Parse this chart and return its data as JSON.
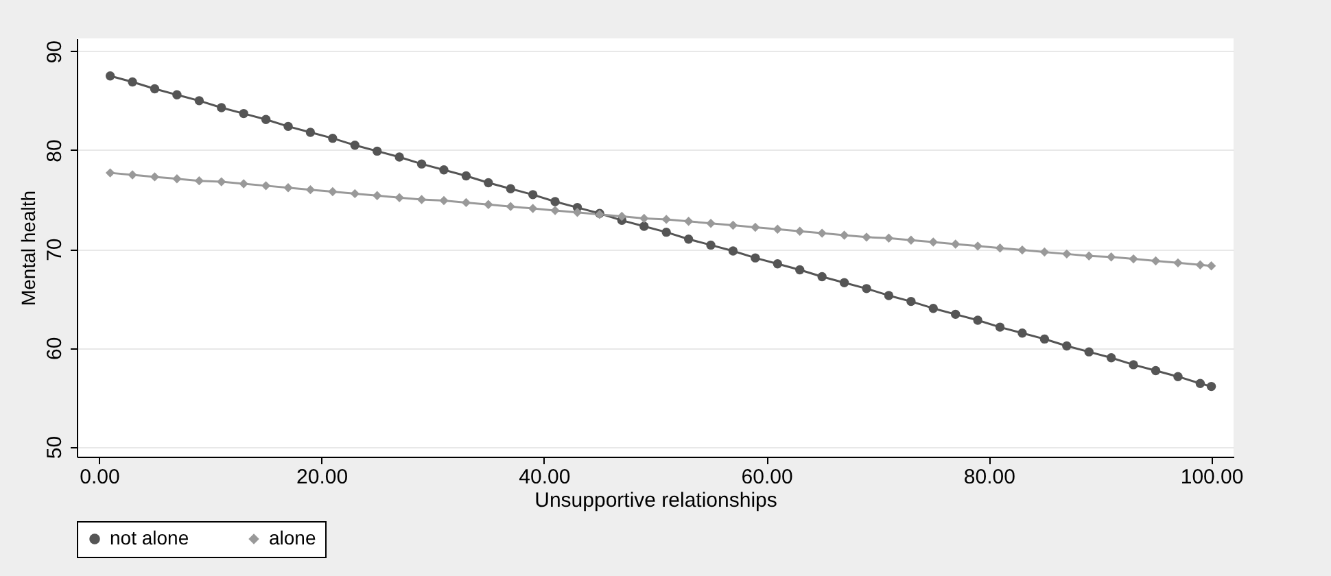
{
  "chart_data": {
    "type": "line",
    "xlabel": "Unsupportive relationships",
    "ylabel": "Mental health",
    "x": [
      1,
      3,
      5,
      7,
      9,
      11,
      13,
      15,
      17,
      19,
      21,
      23,
      25,
      27,
      29,
      31,
      33,
      35,
      37,
      39,
      41,
      43,
      45,
      47,
      49,
      51,
      53,
      55,
      57,
      59,
      61,
      63,
      65,
      67,
      69,
      71,
      73,
      75,
      77,
      79,
      81,
      83,
      85,
      87,
      89,
      91,
      93,
      95,
      97,
      99,
      100
    ],
    "series": [
      {
        "name": "not alone",
        "color": "#555555",
        "marker": "circle",
        "values": [
          87.5,
          86.9,
          86.2,
          85.6,
          85.0,
          84.3,
          83.7,
          83.1,
          82.4,
          81.8,
          81.2,
          80.5,
          79.9,
          79.3,
          78.6,
          78.0,
          77.4,
          76.7,
          76.1,
          75.5,
          74.8,
          74.2,
          73.6,
          72.9,
          72.3,
          71.7,
          71.0,
          70.4,
          69.8,
          69.1,
          68.5,
          67.9,
          67.2,
          66.6,
          66.0,
          65.3,
          64.7,
          64.0,
          63.4,
          62.8,
          62.1,
          61.5,
          60.9,
          60.2,
          59.6,
          59.0,
          58.3,
          57.7,
          57.1,
          56.4,
          56.1
        ]
      },
      {
        "name": "alone",
        "color": "#999999",
        "marker": "diamond",
        "values": [
          77.7,
          77.5,
          77.3,
          77.1,
          76.9,
          76.8,
          76.6,
          76.4,
          76.2,
          76.0,
          75.8,
          75.6,
          75.4,
          75.2,
          75.0,
          74.9,
          74.7,
          74.5,
          74.3,
          74.1,
          73.9,
          73.7,
          73.5,
          73.3,
          73.1,
          73.0,
          72.8,
          72.6,
          72.4,
          72.2,
          72.0,
          71.8,
          71.6,
          71.4,
          71.2,
          71.1,
          70.9,
          70.7,
          70.5,
          70.3,
          70.1,
          69.9,
          69.7,
          69.5,
          69.3,
          69.2,
          69.0,
          68.8,
          68.6,
          68.4,
          68.3
        ]
      }
    ],
    "xlim": [
      -2,
      102
    ],
    "xticks": [
      {
        "value": 0,
        "label": "0.00"
      },
      {
        "value": 20,
        "label": "20.00"
      },
      {
        "value": 40,
        "label": "40.00"
      },
      {
        "value": 60,
        "label": "60.00"
      },
      {
        "value": 80,
        "label": "80.00"
      },
      {
        "value": 100,
        "label": "100.00"
      }
    ],
    "ylim": [
      49,
      91.3
    ],
    "yticks": [
      50,
      60,
      70,
      80,
      90
    ],
    "grid": "y",
    "legend": "bottom",
    "line_style": "solid"
  }
}
